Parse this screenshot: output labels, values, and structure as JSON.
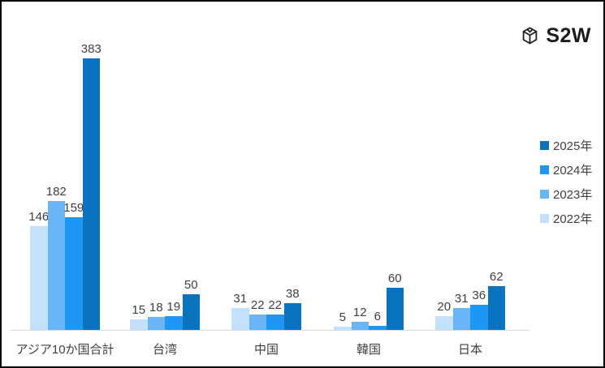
{
  "logo": {
    "text": "S2W",
    "icon": "cube-icon"
  },
  "chart_data": {
    "type": "bar",
    "categories": [
      "アジア10か国合計",
      "台湾",
      "中国",
      "韓国",
      "日本"
    ],
    "series": [
      {
        "name": "2022年",
        "color": "#c3e1fb",
        "values": [
          146,
          15,
          31,
          5,
          20
        ]
      },
      {
        "name": "2023年",
        "color": "#6ab5f6",
        "values": [
          182,
          18,
          22,
          12,
          31
        ]
      },
      {
        "name": "2024年",
        "color": "#1e96f3",
        "values": [
          159,
          19,
          22,
          6,
          36
        ]
      },
      {
        "name": "2025年",
        "color": "#0a73c0",
        "values": [
          383,
          50,
          38,
          60,
          62
        ]
      }
    ],
    "legend_order": [
      "2025年",
      "2024年",
      "2023年",
      "2022年"
    ],
    "legend_position": "right",
    "title": "",
    "xlabel": "",
    "ylabel": "",
    "ylim": [
      0,
      383
    ],
    "grid": false,
    "data_labels": true,
    "label_color": "#3f3f3f",
    "axis_line_color": "#d9d9d9"
  }
}
